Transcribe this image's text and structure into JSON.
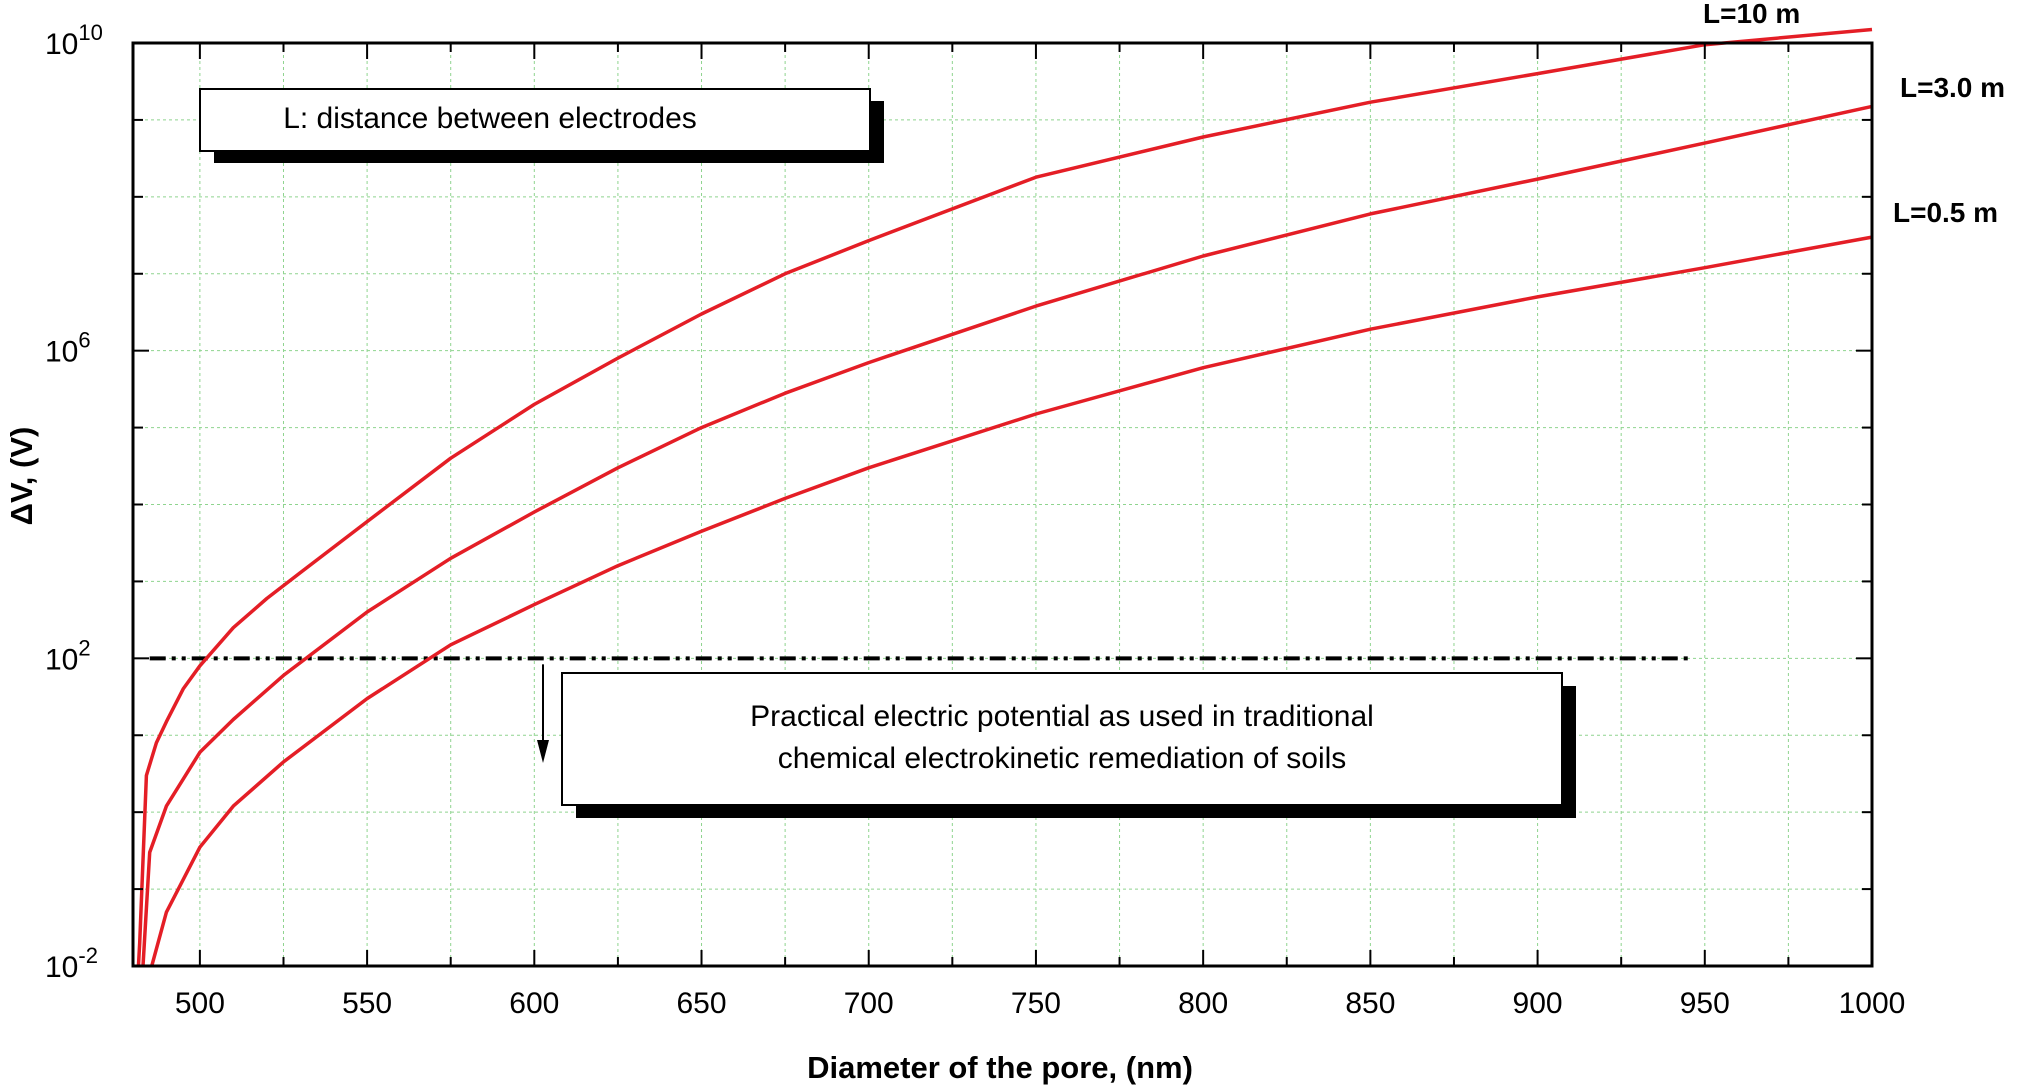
{
  "chart_data": {
    "type": "line",
    "xlabel": "Diameter of the pore, (nm)",
    "ylabel": "ΔV, (V)",
    "xlim": [
      480,
      1000
    ],
    "ylim": [
      0.01,
      10000000000
    ],
    "yscale": "log",
    "grid": true,
    "x_ticks": [
      500,
      550,
      600,
      650,
      700,
      750,
      800,
      850,
      900,
      950,
      1000
    ],
    "y_ticks": [
      {
        "base": "10",
        "exp": "-2",
        "value": 0.01
      },
      {
        "base": "10",
        "exp": "2",
        "value": 100
      },
      {
        "base": "10",
        "exp": "6",
        "value": 1000000
      },
      {
        "base": "10",
        "exp": "10",
        "value": 10000000000
      }
    ],
    "line_color": "#e41e26",
    "series": [
      {
        "name": "L=10 m",
        "x": [
          480,
          482,
          484,
          487,
          490,
          495,
          500,
          510,
          520,
          530,
          550,
          575,
          600,
          625,
          650,
          675,
          700,
          750,
          800,
          850,
          900,
          950,
          1000
        ],
        "y": [
          0.0005,
          0.02,
          3.0,
          8.0,
          15,
          40,
          80,
          250,
          600,
          1300,
          6000,
          40000,
          200000,
          800000,
          3000000,
          10000000,
          27000000,
          180000000,
          600000000,
          1700000000,
          4000000000,
          9500000000,
          15000000000
        ]
      },
      {
        "name": "L=3.0 m",
        "x": [
          481,
          483,
          485,
          490,
          500,
          510,
          525,
          550,
          575,
          600,
          625,
          650,
          675,
          700,
          750,
          800,
          850,
          900,
          950,
          1000
        ],
        "y": [
          0.0003,
          0.01,
          0.3,
          1.2,
          6,
          16,
          60,
          400,
          2000,
          8000,
          30000,
          100000,
          280000,
          700000,
          3800000,
          17000000,
          60000000,
          170000000,
          500000000,
          1500000000
        ]
      },
      {
        "name": "L=0.5 m",
        "x": [
          483,
          485,
          490,
          500,
          510,
          525,
          550,
          575,
          600,
          625,
          650,
          675,
          700,
          750,
          800,
          850,
          900,
          950,
          1000
        ],
        "y": [
          0.0003,
          0.008,
          0.05,
          0.35,
          1.2,
          4.5,
          30,
          150,
          500,
          1600,
          4500,
          12000,
          30000,
          150000,
          600000,
          1900000,
          5000000,
          12000000,
          30000000
        ]
      }
    ],
    "threshold": {
      "value": 100,
      "x_start": 485,
      "x_end": 945
    },
    "annotations": {
      "legend_note": "L: distance between electrodes",
      "practical_line1": "Practical electric potential as used in traditional",
      "practical_line2": "chemical electrokinetic remediation of soils"
    }
  }
}
